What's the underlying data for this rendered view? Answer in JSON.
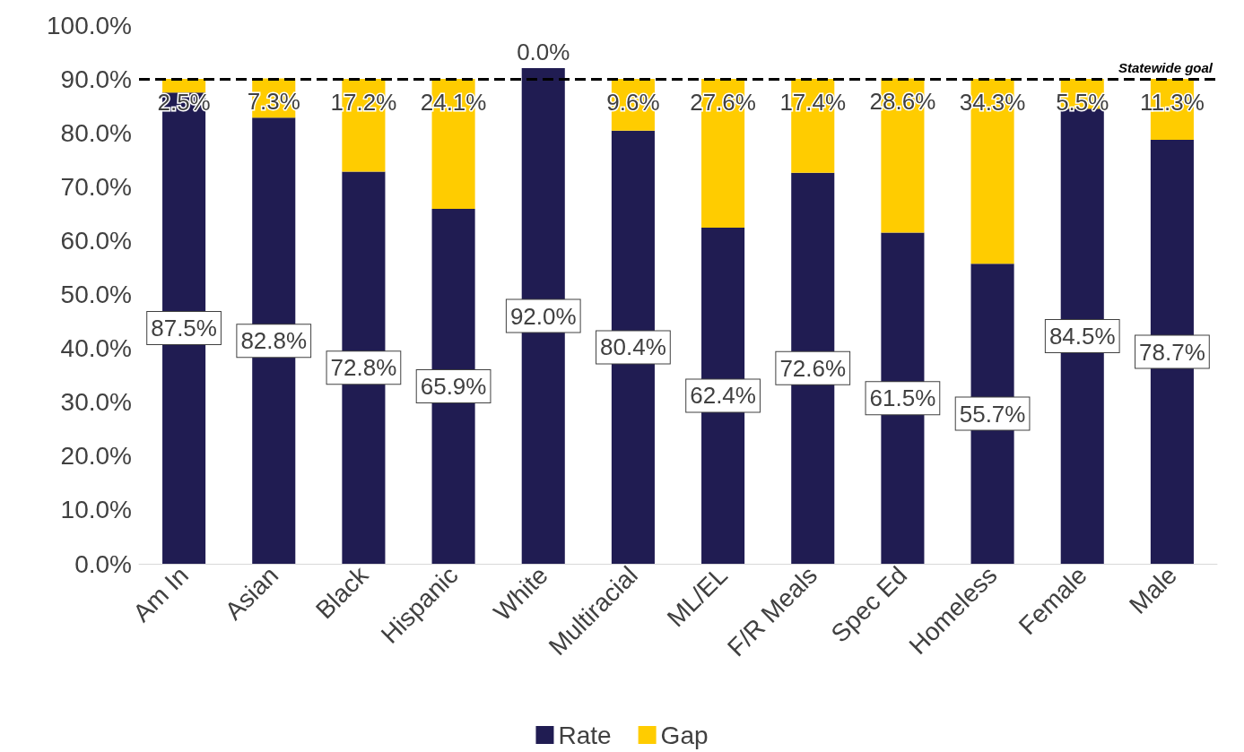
{
  "chart_data": {
    "type": "bar",
    "stacked": true,
    "categories": [
      "Am In",
      "Asian",
      "Black",
      "Hispanic",
      "White",
      "Multiracial",
      "ML/EL",
      "F/R Meals",
      "Spec Ed",
      "Homeless",
      "Female",
      "Male"
    ],
    "series": [
      {
        "name": "Rate",
        "color": "#201c52",
        "values": [
          87.5,
          82.8,
          72.8,
          65.9,
          92.0,
          80.4,
          62.4,
          72.6,
          61.5,
          55.7,
          84.5,
          78.7
        ],
        "value_labels": [
          "87.5%",
          "82.8%",
          "72.8%",
          "65.9%",
          "92.0%",
          "80.4%",
          "62.4%",
          "72.6%",
          "61.5%",
          "55.7%",
          "84.5%",
          "78.7%"
        ]
      },
      {
        "name": "Gap",
        "color": "#ffcc00",
        "values": [
          2.5,
          7.3,
          17.2,
          24.1,
          0.0,
          9.6,
          27.6,
          17.4,
          28.6,
          34.3,
          5.5,
          11.3
        ],
        "value_labels": [
          "2.5%",
          "7.3%",
          "17.2%",
          "24.1%",
          "0.0%",
          "9.6%",
          "27.6%",
          "17.4%",
          "28.6%",
          "34.3%",
          "5.5%",
          "11.3%"
        ]
      }
    ],
    "ylim": [
      0,
      100
    ],
    "yticks": [
      {
        "value": 0,
        "label": "0.0%"
      },
      {
        "value": 10,
        "label": "10.0%"
      },
      {
        "value": 20,
        "label": "20.0%"
      },
      {
        "value": 30,
        "label": "30.0%"
      },
      {
        "value": 40,
        "label": "40.0%"
      },
      {
        "value": 50,
        "label": "50.0%"
      },
      {
        "value": 60,
        "label": "60.0%"
      },
      {
        "value": 70,
        "label": "70.0%"
      },
      {
        "value": 80,
        "label": "80.0%"
      },
      {
        "value": 90,
        "label": "90.0%"
      },
      {
        "value": 100,
        "label": "100.0%"
      }
    ],
    "ref_lines": [
      {
        "axis": "y",
        "value": 90,
        "label": "Statewide goal",
        "color": "#000000",
        "line_style": "dashed"
      }
    ],
    "grid": false,
    "legend": "bottom"
  }
}
